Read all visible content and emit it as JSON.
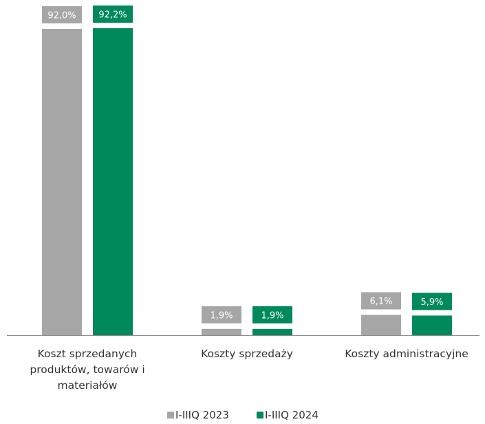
{
  "chart_data": {
    "type": "bar",
    "categories": [
      [
        "Koszt sprzedanych",
        "produktów, towarów i",
        "materiałów"
      ],
      [
        "Koszty sprzedaży"
      ],
      [
        "Koszty administracyjne"
      ]
    ],
    "series": [
      {
        "name": "I-IIIQ 2023",
        "color": "#a6a6a6",
        "values": [
          92.0,
          1.9,
          6.1
        ],
        "labels": [
          "92,0%",
          "1,9%",
          "6,1%"
        ]
      },
      {
        "name": "I-IIIQ 2024",
        "color": "#00895a",
        "values": [
          92.2,
          1.9,
          5.9
        ],
        "labels": [
          "92,2%",
          "1,9%",
          "5,9%"
        ]
      }
    ],
    "ylim": [
      0,
      92.2
    ],
    "grid": false,
    "legend": "bottom-center",
    "axis_color": "#8c8c8c"
  }
}
